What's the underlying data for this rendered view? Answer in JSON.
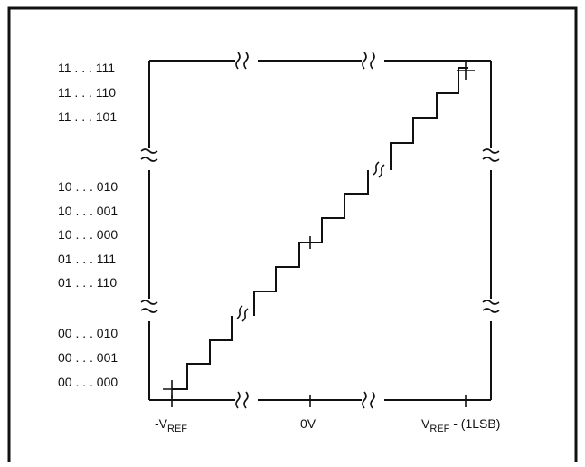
{
  "diagram": {
    "y_labels": [
      "11 . . . 111",
      "11 . . . 110",
      "11 . . . 101",
      "10 . . . 010",
      "10 . . . 001",
      "10 . . . 000",
      "01 . . . 111",
      "01 . . . 110",
      "00 . . . 010",
      "00 . . . 001",
      "00 . . . 000"
    ],
    "x_labels": {
      "left_main": "-V",
      "left_sub": "REF",
      "center": "0V",
      "right_main": "V",
      "right_sub": "REF",
      "right_suffix": " - (1LSB)"
    },
    "line_color": "#111111"
  }
}
